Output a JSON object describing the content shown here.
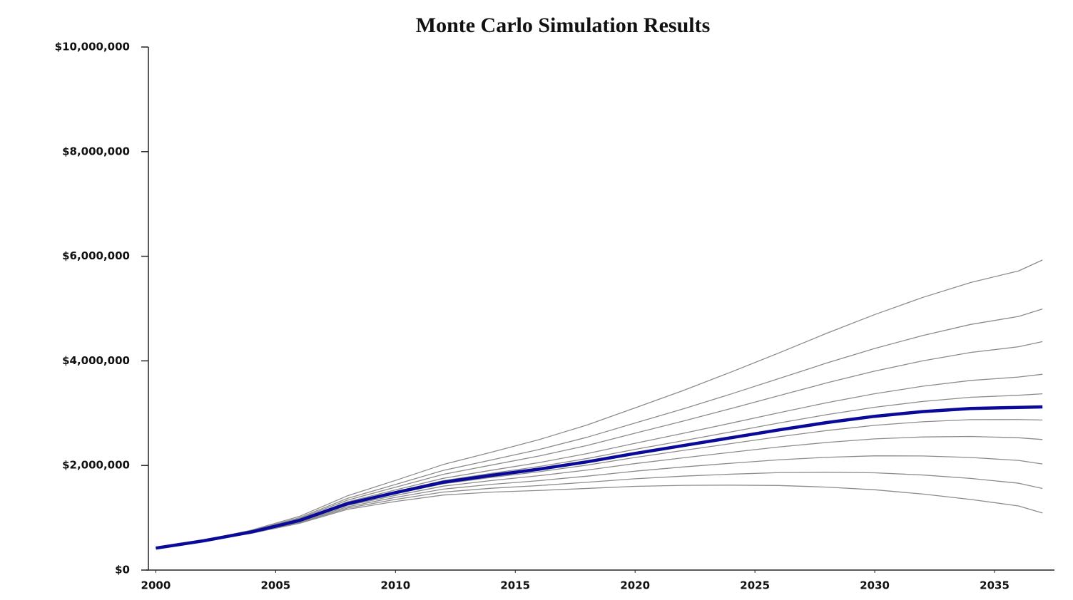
{
  "chart_data": {
    "type": "line",
    "title": "Monte Carlo Simulation Results",
    "x": [
      2000,
      2002,
      2004,
      2006,
      2008,
      2010,
      2012,
      2014,
      2016,
      2018,
      2020,
      2022,
      2024,
      2026,
      2028,
      2030,
      2032,
      2034,
      2036,
      2037
    ],
    "xlim": [
      1999.6,
      2037.5
    ],
    "xticks": [
      2000,
      2005,
      2010,
      2015,
      2020,
      2025,
      2030,
      2035
    ],
    "ylim": [
      0,
      10000000
    ],
    "yticks": [
      {
        "value": 0,
        "label": "$0"
      },
      {
        "value": 2000000,
        "label": "$2,000,000"
      },
      {
        "value": 4000000,
        "label": "$4,000,000"
      },
      {
        "value": 6000000,
        "label": "$6,000,000"
      },
      {
        "value": 8000000,
        "label": "$8,000,000"
      },
      {
        "value": 10000000,
        "label": "$10,000,000"
      }
    ],
    "series": [
      {
        "color": "#8c8c8c",
        "values": [
          420000,
          571000,
          765000,
          1028000,
          1421000,
          1714000,
          2019000,
          2253000,
          2495000,
          2774000,
          3101000,
          3432000,
          3785000,
          4151000,
          4528000,
          4885000,
          5212000,
          5498000,
          5719000,
          5928000
        ]
      },
      {
        "color": "#8c8c8c",
        "values": [
          420000,
          567000,
          754000,
          1002000,
          1371000,
          1636000,
          1906000,
          2105000,
          2306000,
          2540000,
          2811000,
          3081000,
          3366000,
          3661000,
          3959000,
          4237000,
          4484000,
          4696000,
          4849000,
          4992000
        ]
      },
      {
        "color": "#8c8c8c",
        "values": [
          420000,
          565000,
          746000,
          985000,
          1337000,
          1584000,
          1831000,
          2007000,
          2181000,
          2383000,
          2617000,
          2847000,
          3088000,
          3334000,
          3579000,
          3804000,
          4000000,
          4160000,
          4269000,
          4368000
        ]
      },
      {
        "color": "#8c8c8c",
        "values": [
          420000,
          563000,
          738000,
          967000,
          1304000,
          1532000,
          1755000,
          1908000,
          2055000,
          2227000,
          2424000,
          2614000,
          2809000,
          3007000,
          3200000,
          3372000,
          3515000,
          3625000,
          3690000,
          3744000
        ]
      },
      {
        "color": "#8c8c8c",
        "values": [
          420000,
          561000,
          733000,
          957000,
          1283000,
          1501000,
          1710000,
          1849000,
          1980000,
          2133000,
          2307000,
          2473000,
          2642000,
          2811000,
          2972000,
          3113000,
          3224000,
          3304000,
          3342000,
          3370000
        ]
      },
      {
        "color": "#8c8c8c",
        "values": [
          420000,
          559000,
          727000,
          943000,
          1257000,
          1459000,
          1650000,
          1771000,
          1880000,
          2007000,
          2153000,
          2287000,
          2418000,
          2549000,
          2668000,
          2767000,
          2836000,
          2876000,
          2878000,
          2870000
        ]
      },
      {
        "color": "#8c8c8c",
        "values": [
          420000,
          558000,
          722000,
          933000,
          1236000,
          1428000,
          1605000,
          1712000,
          1805000,
          1913000,
          2036000,
          2146000,
          2251000,
          2353000,
          2440000,
          2508000,
          2545000,
          2555000,
          2530000,
          2496000
        ]
      },
      {
        "color": "#8c8c8c",
        "values": [
          420000,
          556000,
          716000,
          920000,
          1211000,
          1389000,
          1548000,
          1638000,
          1710000,
          1796000,
          1891000,
          1971000,
          2042000,
          2108000,
          2156000,
          2184000,
          2182000,
          2153000,
          2096000,
          2028000
        ]
      },
      {
        "color": "#8c8c8c",
        "values": [
          420000,
          554000,
          710000,
          907000,
          1186000,
          1350000,
          1492000,
          1564000,
          1616000,
          1679000,
          1746000,
          1796000,
          1833000,
          1863000,
          1871000,
          1860000,
          1818000,
          1752000,
          1661000,
          1560000
        ]
      },
      {
        "color": "#8c8c8c",
        "values": [
          420000,
          552000,
          704000,
          894000,
          1161000,
          1311000,
          1435000,
          1490000,
          1522000,
          1561000,
          1601000,
          1620000,
          1624000,
          1617000,
          1586000,
          1535000,
          1454000,
          1351000,
          1226000,
          1092000
        ]
      },
      {
        "color": "#0a0a9a",
        "values": [
          420000,
          560000,
          730000,
          950000,
          1270000,
          1480000,
          1680000,
          1810000,
          1930000,
          2070000,
          2230000,
          2380000,
          2530000,
          2680000,
          2820000,
          2940000,
          3030000,
          3090000,
          3110000,
          3120000
        ]
      }
    ]
  }
}
